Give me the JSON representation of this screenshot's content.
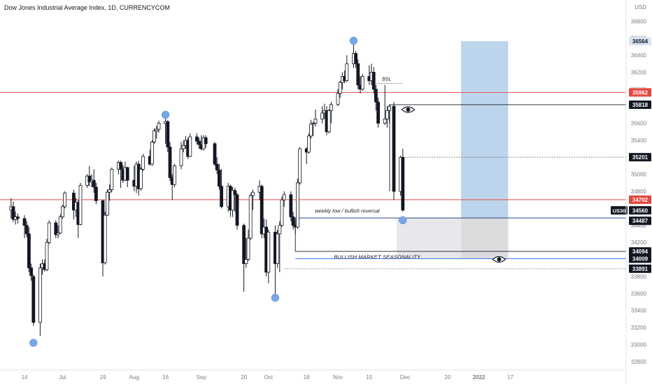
{
  "header": {
    "title": "Dow Jones Industrial Average Index, 1D, CURRENCYCOM"
  },
  "chart_data": {
    "type": "candlestick",
    "symbol": "US30",
    "currency_label": "USD",
    "ylim": [
      32700,
      36950
    ],
    "y_ticks": [
      32800,
      33000,
      33200,
      33400,
      33600,
      33800,
      34000,
      34200,
      34400,
      34600,
      34800,
      35000,
      35200,
      35400,
      35600,
      35800,
      36000,
      36200,
      36400,
      36600,
      36800
    ],
    "x_ticks": [
      {
        "label": "14",
        "date": "2021-06-14"
      },
      {
        "label": "Jul",
        "date": "2021-07-01"
      },
      {
        "label": "19",
        "date": "2021-07-19"
      },
      {
        "label": "Aug",
        "date": "2021-08-02"
      },
      {
        "label": "16",
        "date": "2021-08-16"
      },
      {
        "label": "Sep",
        "date": "2021-09-01"
      },
      {
        "label": "20",
        "date": "2021-09-20"
      },
      {
        "label": "Oct",
        "date": "2021-10-01"
      },
      {
        "label": "18",
        "date": "2021-10-18"
      },
      {
        "label": "Nov",
        "date": "2021-11-01"
      },
      {
        "label": "15",
        "date": "2021-11-15"
      },
      {
        "label": "Dec",
        "date": "2021-12-01"
      },
      {
        "label": "20",
        "date": "2021-12-20"
      },
      {
        "label": "2022",
        "date": "2022-01-03"
      },
      {
        "label": "17",
        "date": "2022-01-17"
      }
    ],
    "price_labels": [
      {
        "value": "36564",
        "style": "plain"
      },
      {
        "value": "35962",
        "style": "red"
      },
      {
        "value": "35818",
        "style": "dark"
      },
      {
        "value": "35201",
        "style": "dark"
      },
      {
        "value": "34702",
        "style": "red"
      },
      {
        "value": "34560",
        "style": "dark"
      },
      {
        "value": "34487",
        "style": "dark"
      },
      {
        "value": "34094",
        "style": "dark"
      },
      {
        "value": "34009",
        "style": "dark"
      },
      {
        "value": "33891",
        "style": "dark"
      }
    ],
    "horizontal_levels": [
      {
        "value": 35962,
        "color": "#e8453c",
        "style": "solid"
      },
      {
        "value": 34702,
        "color": "#e8453c",
        "style": "solid"
      },
      {
        "value": 35818,
        "color": "#131722",
        "style": "solid"
      },
      {
        "value": 35201,
        "color": "#555555",
        "style": "dotted"
      },
      {
        "value": 34487,
        "color": "#1a2f7a",
        "style": "solid"
      },
      {
        "value": 34009,
        "color": "#2962ff",
        "style": "solid"
      },
      {
        "value": 34094,
        "color": "#131722",
        "style": "solid"
      },
      {
        "value": 33891,
        "color": "#555555",
        "style": "dotted"
      },
      {
        "value": 36070,
        "color": "#333333",
        "style": "dotted"
      }
    ],
    "annotations": {
      "bsl": "BSL",
      "weekly_low": "weekly low / bullish reversal",
      "seasonality": "BULLISH MARKET SEASONALITY"
    },
    "zones": [
      {
        "name": "target",
        "y_top": 36564,
        "y_bottom": 34487,
        "color": "#b6d0ea"
      },
      {
        "name": "stop",
        "y_top": 34487,
        "y_bottom": 34009,
        "color": "#d8d8dc"
      }
    ],
    "swing_markers": [
      {
        "date": "2021-06-18",
        "price": 33020
      },
      {
        "date": "2021-08-16",
        "price": 35700
      },
      {
        "date": "2021-10-04",
        "price": 33550
      },
      {
        "date": "2021-11-08",
        "price": 36570
      },
      {
        "date": "2021-11-30",
        "price": 34460
      }
    ],
    "candles": [
      {
        "d": "2021-06-08",
        "o": 34580,
        "h": 34720,
        "l": 34480,
        "c": 34620
      },
      {
        "d": "2021-06-09",
        "o": 34620,
        "h": 34680,
        "l": 34440,
        "c": 34470
      },
      {
        "d": "2021-06-10",
        "o": 34470,
        "h": 34560,
        "l": 34410,
        "c": 34500
      },
      {
        "d": "2021-06-11",
        "o": 34500,
        "h": 34540,
        "l": 34420,
        "c": 34480
      },
      {
        "d": "2021-06-14",
        "o": 34480,
        "h": 34520,
        "l": 34250,
        "c": 34400
      },
      {
        "d": "2021-06-15",
        "o": 34400,
        "h": 34450,
        "l": 34260,
        "c": 34300
      },
      {
        "d": "2021-06-16",
        "o": 34300,
        "h": 34380,
        "l": 33850,
        "c": 33900
      },
      {
        "d": "2021-06-17",
        "o": 33900,
        "h": 33950,
        "l": 33750,
        "c": 33810
      },
      {
        "d": "2021-06-18",
        "o": 33800,
        "h": 33820,
        "l": 33220,
        "c": 33260
      },
      {
        "d": "2021-06-21",
        "o": 33260,
        "h": 33950,
        "l": 33100,
        "c": 33900
      },
      {
        "d": "2021-06-22",
        "o": 33900,
        "h": 34000,
        "l": 33820,
        "c": 33950
      },
      {
        "d": "2021-06-23",
        "o": 33950,
        "h": 34000,
        "l": 33860,
        "c": 33880
      },
      {
        "d": "2021-06-24",
        "o": 33880,
        "h": 34240,
        "l": 33860,
        "c": 34200
      },
      {
        "d": "2021-06-25",
        "o": 34200,
        "h": 34460,
        "l": 34180,
        "c": 34430
      },
      {
        "d": "2021-06-28",
        "o": 34430,
        "h": 34460,
        "l": 34250,
        "c": 34290
      },
      {
        "d": "2021-06-29",
        "o": 34290,
        "h": 34400,
        "l": 34250,
        "c": 34310
      },
      {
        "d": "2021-06-30",
        "o": 34310,
        "h": 34530,
        "l": 34300,
        "c": 34500
      },
      {
        "d": "2021-07-01",
        "o": 34500,
        "h": 34640,
        "l": 34480,
        "c": 34620
      },
      {
        "d": "2021-07-02",
        "o": 34620,
        "h": 34800,
        "l": 34600,
        "c": 34780
      },
      {
        "d": "2021-07-06",
        "o": 34780,
        "h": 34820,
        "l": 34470,
        "c": 34580
      },
      {
        "d": "2021-07-07",
        "o": 34580,
        "h": 34720,
        "l": 34500,
        "c": 34670
      },
      {
        "d": "2021-07-08",
        "o": 34670,
        "h": 34700,
        "l": 34250,
        "c": 34410
      },
      {
        "d": "2021-07-09",
        "o": 34410,
        "h": 34900,
        "l": 34400,
        "c": 34870
      },
      {
        "d": "2021-07-12",
        "o": 34870,
        "h": 35000,
        "l": 34840,
        "c": 34980
      },
      {
        "d": "2021-07-13",
        "o": 34980,
        "h": 35100,
        "l": 34860,
        "c": 34910
      },
      {
        "d": "2021-07-14",
        "o": 34910,
        "h": 35000,
        "l": 34850,
        "c": 34930
      },
      {
        "d": "2021-07-15",
        "o": 34930,
        "h": 35060,
        "l": 34780,
        "c": 34850
      },
      {
        "d": "2021-07-16",
        "o": 34850,
        "h": 34900,
        "l": 34650,
        "c": 34690
      },
      {
        "d": "2021-07-19",
        "o": 34690,
        "h": 34700,
        "l": 33800,
        "c": 33960
      },
      {
        "d": "2021-07-20",
        "o": 33960,
        "h": 34560,
        "l": 33940,
        "c": 34520
      },
      {
        "d": "2021-07-21",
        "o": 34520,
        "h": 34820,
        "l": 34510,
        "c": 34790
      },
      {
        "d": "2021-07-22",
        "o": 34790,
        "h": 34880,
        "l": 34690,
        "c": 34820
      },
      {
        "d": "2021-07-23",
        "o": 34820,
        "h": 35080,
        "l": 34790,
        "c": 35060
      },
      {
        "d": "2021-07-26",
        "o": 35060,
        "h": 35160,
        "l": 35000,
        "c": 35140
      },
      {
        "d": "2021-07-27",
        "o": 35140,
        "h": 35160,
        "l": 34840,
        "c": 35060
      },
      {
        "d": "2021-07-28",
        "o": 35060,
        "h": 35110,
        "l": 34900,
        "c": 34930
      },
      {
        "d": "2021-07-29",
        "o": 34930,
        "h": 35150,
        "l": 34920,
        "c": 35080
      },
      {
        "d": "2021-07-30",
        "o": 35080,
        "h": 35090,
        "l": 34850,
        "c": 34930
      },
      {
        "d": "2021-08-02",
        "o": 34930,
        "h": 35100,
        "l": 34800,
        "c": 34860
      },
      {
        "d": "2021-08-03",
        "o": 34860,
        "h": 35150,
        "l": 34780,
        "c": 35120
      },
      {
        "d": "2021-08-04",
        "o": 35120,
        "h": 35160,
        "l": 34750,
        "c": 34830
      },
      {
        "d": "2021-08-05",
        "o": 34830,
        "h": 35080,
        "l": 34810,
        "c": 35060
      },
      {
        "d": "2021-08-06",
        "o": 35060,
        "h": 35240,
        "l": 35040,
        "c": 35210
      },
      {
        "d": "2021-08-09",
        "o": 35210,
        "h": 35290,
        "l": 35100,
        "c": 35120
      },
      {
        "d": "2021-08-10",
        "o": 35120,
        "h": 35400,
        "l": 35100,
        "c": 35380
      },
      {
        "d": "2021-08-11",
        "o": 35380,
        "h": 35540,
        "l": 35360,
        "c": 35510
      },
      {
        "d": "2021-08-12",
        "o": 35510,
        "h": 35570,
        "l": 35420,
        "c": 35530
      },
      {
        "d": "2021-08-13",
        "o": 35530,
        "h": 35630,
        "l": 35490,
        "c": 35600
      },
      {
        "d": "2021-08-16",
        "o": 35600,
        "h": 35680,
        "l": 35360,
        "c": 35620
      },
      {
        "d": "2021-08-17",
        "o": 35620,
        "h": 35640,
        "l": 35260,
        "c": 35320
      },
      {
        "d": "2021-08-18",
        "o": 35320,
        "h": 35380,
        "l": 34920,
        "c": 34960
      },
      {
        "d": "2021-08-19",
        "o": 34960,
        "h": 35000,
        "l": 34700,
        "c": 34880
      },
      {
        "d": "2021-08-20",
        "o": 34880,
        "h": 35120,
        "l": 34850,
        "c": 35100
      },
      {
        "d": "2021-08-23",
        "o": 35100,
        "h": 35380,
        "l": 35060,
        "c": 35300
      },
      {
        "d": "2021-08-24",
        "o": 35300,
        "h": 35400,
        "l": 35260,
        "c": 35340
      },
      {
        "d": "2021-08-25",
        "o": 35340,
        "h": 35450,
        "l": 35300,
        "c": 35400
      },
      {
        "d": "2021-08-26",
        "o": 35400,
        "h": 35430,
        "l": 35180,
        "c": 35210
      },
      {
        "d": "2021-08-27",
        "o": 35210,
        "h": 35480,
        "l": 35200,
        "c": 35440
      },
      {
        "d": "2021-08-30",
        "o": 35440,
        "h": 35480,
        "l": 35350,
        "c": 35390
      },
      {
        "d": "2021-08-31",
        "o": 35390,
        "h": 35430,
        "l": 35300,
        "c": 35350
      },
      {
        "d": "2021-09-01",
        "o": 35350,
        "h": 35460,
        "l": 35280,
        "c": 35300
      },
      {
        "d": "2021-09-02",
        "o": 35300,
        "h": 35460,
        "l": 35280,
        "c": 35430
      },
      {
        "d": "2021-09-03",
        "o": 35430,
        "h": 35460,
        "l": 35310,
        "c": 35360
      },
      {
        "d": "2021-09-07",
        "o": 35360,
        "h": 35380,
        "l": 35100,
        "c": 35120
      },
      {
        "d": "2021-09-08",
        "o": 35120,
        "h": 35200,
        "l": 35000,
        "c": 35050
      },
      {
        "d": "2021-09-09",
        "o": 35050,
        "h": 35120,
        "l": 34820,
        "c": 34860
      },
      {
        "d": "2021-09-10",
        "o": 34860,
        "h": 35060,
        "l": 34600,
        "c": 34620
      },
      {
        "d": "2021-09-13",
        "o": 34620,
        "h": 34900,
        "l": 34560,
        "c": 34860
      },
      {
        "d": "2021-09-14",
        "o": 34860,
        "h": 34880,
        "l": 34500,
        "c": 34580
      },
      {
        "d": "2021-09-15",
        "o": 34580,
        "h": 34850,
        "l": 34500,
        "c": 34810
      },
      {
        "d": "2021-09-16",
        "o": 34810,
        "h": 34840,
        "l": 34560,
        "c": 34760
      },
      {
        "d": "2021-09-17",
        "o": 34760,
        "h": 34780,
        "l": 34350,
        "c": 34400
      },
      {
        "d": "2021-09-20",
        "o": 34400,
        "h": 34420,
        "l": 33620,
        "c": 33950
      },
      {
        "d": "2021-09-21",
        "o": 33950,
        "h": 34250,
        "l": 33900,
        "c": 34000
      },
      {
        "d": "2021-09-22",
        "o": 34000,
        "h": 34350,
        "l": 33980,
        "c": 34250
      },
      {
        "d": "2021-09-23",
        "o": 34250,
        "h": 34780,
        "l": 34230,
        "c": 34750
      },
      {
        "d": "2021-09-24",
        "o": 34750,
        "h": 34820,
        "l": 34580,
        "c": 34790
      },
      {
        "d": "2021-09-27",
        "o": 34790,
        "h": 34930,
        "l": 34700,
        "c": 34860
      },
      {
        "d": "2021-09-28",
        "o": 34860,
        "h": 34880,
        "l": 34250,
        "c": 34300
      },
      {
        "d": "2021-09-29",
        "o": 34300,
        "h": 34480,
        "l": 34250,
        "c": 34380
      },
      {
        "d": "2021-09-30",
        "o": 34380,
        "h": 34470,
        "l": 33800,
        "c": 33850
      },
      {
        "d": "2021-10-01",
        "o": 33850,
        "h": 34350,
        "l": 33720,
        "c": 34320
      },
      {
        "d": "2021-10-04",
        "o": 34320,
        "h": 34400,
        "l": 33550,
        "c": 33950
      },
      {
        "d": "2021-10-05",
        "o": 33950,
        "h": 34350,
        "l": 33900,
        "c": 34300
      },
      {
        "d": "2021-10-06",
        "o": 34300,
        "h": 34450,
        "l": 33850,
        "c": 34400
      },
      {
        "d": "2021-10-07",
        "o": 34400,
        "h": 34740,
        "l": 34380,
        "c": 34700
      },
      {
        "d": "2021-10-08",
        "o": 34700,
        "h": 34800,
        "l": 34620,
        "c": 34760
      },
      {
        "d": "2021-10-11",
        "o": 34760,
        "h": 34800,
        "l": 34450,
        "c": 34500
      },
      {
        "d": "2021-10-12",
        "o": 34500,
        "h": 34560,
        "l": 34350,
        "c": 34400
      },
      {
        "d": "2021-10-13",
        "o": 34400,
        "h": 34460,
        "l": 34300,
        "c": 34380
      },
      {
        "d": "2021-10-14",
        "o": 34380,
        "h": 34950,
        "l": 34360,
        "c": 34900
      },
      {
        "d": "2021-10-15",
        "o": 34900,
        "h": 35320,
        "l": 34880,
        "c": 35300
      },
      {
        "d": "2021-10-18",
        "o": 35300,
        "h": 35320,
        "l": 35120,
        "c": 35260
      },
      {
        "d": "2021-10-19",
        "o": 35260,
        "h": 35480,
        "l": 35240,
        "c": 35450
      },
      {
        "d": "2021-10-20",
        "o": 35450,
        "h": 35640,
        "l": 35420,
        "c": 35590
      },
      {
        "d": "2021-10-21",
        "o": 35590,
        "h": 35620,
        "l": 35450,
        "c": 35600
      },
      {
        "d": "2021-10-22",
        "o": 35600,
        "h": 35760,
        "l": 35560,
        "c": 35650
      },
      {
        "d": "2021-10-25",
        "o": 35650,
        "h": 35800,
        "l": 35600,
        "c": 35720
      },
      {
        "d": "2021-10-26",
        "o": 35720,
        "h": 35830,
        "l": 35650,
        "c": 35750
      },
      {
        "d": "2021-10-27",
        "o": 35750,
        "h": 35800,
        "l": 35460,
        "c": 35500
      },
      {
        "d": "2021-10-28",
        "o": 35500,
        "h": 35770,
        "l": 35480,
        "c": 35750
      },
      {
        "d": "2021-10-29",
        "o": 35750,
        "h": 35850,
        "l": 35600,
        "c": 35820
      },
      {
        "d": "2021-11-01",
        "o": 35820,
        "h": 36000,
        "l": 35800,
        "c": 35950
      },
      {
        "d": "2021-11-02",
        "o": 35950,
        "h": 36100,
        "l": 35900,
        "c": 36080
      },
      {
        "d": "2021-11-03",
        "o": 36080,
        "h": 36200,
        "l": 36000,
        "c": 36150
      },
      {
        "d": "2021-11-04",
        "o": 36150,
        "h": 36220,
        "l": 36070,
        "c": 36100
      },
      {
        "d": "2021-11-05",
        "o": 36100,
        "h": 36400,
        "l": 36080,
        "c": 36300
      },
      {
        "d": "2021-11-08",
        "o": 36300,
        "h": 36560,
        "l": 36250,
        "c": 36420
      },
      {
        "d": "2021-11-09",
        "o": 36420,
        "h": 36450,
        "l": 36250,
        "c": 36300
      },
      {
        "d": "2021-11-10",
        "o": 36300,
        "h": 36350,
        "l": 36000,
        "c": 36050
      },
      {
        "d": "2021-11-11",
        "o": 36050,
        "h": 36150,
        "l": 35950,
        "c": 36000
      },
      {
        "d": "2021-11-12",
        "o": 36000,
        "h": 36180,
        "l": 35980,
        "c": 36150
      },
      {
        "d": "2021-11-15",
        "o": 36150,
        "h": 36280,
        "l": 36050,
        "c": 36100
      },
      {
        "d": "2021-11-16",
        "o": 36100,
        "h": 36300,
        "l": 36050,
        "c": 36200
      },
      {
        "d": "2021-11-17",
        "o": 36200,
        "h": 36260,
        "l": 35950,
        "c": 36000
      },
      {
        "d": "2021-11-18",
        "o": 36000,
        "h": 36050,
        "l": 35750,
        "c": 35850
      },
      {
        "d": "2021-11-19",
        "o": 35850,
        "h": 35900,
        "l": 35550,
        "c": 35600
      },
      {
        "d": "2021-11-22",
        "o": 35600,
        "h": 36050,
        "l": 35580,
        "c": 35650
      },
      {
        "d": "2021-11-23",
        "o": 35650,
        "h": 35800,
        "l": 35550,
        "c": 35750
      },
      {
        "d": "2021-11-24",
        "o": 35750,
        "h": 35820,
        "l": 35600,
        "c": 35800
      },
      {
        "d": "2021-11-26",
        "o": 35800,
        "h": 35850,
        "l": 34700,
        "c": 34800
      },
      {
        "d": "2021-11-29",
        "o": 34800,
        "h": 35220,
        "l": 34750,
        "c": 35200
      },
      {
        "d": "2021-11-30",
        "o": 35200,
        "h": 35300,
        "l": 34560,
        "c": 34580
      }
    ]
  }
}
